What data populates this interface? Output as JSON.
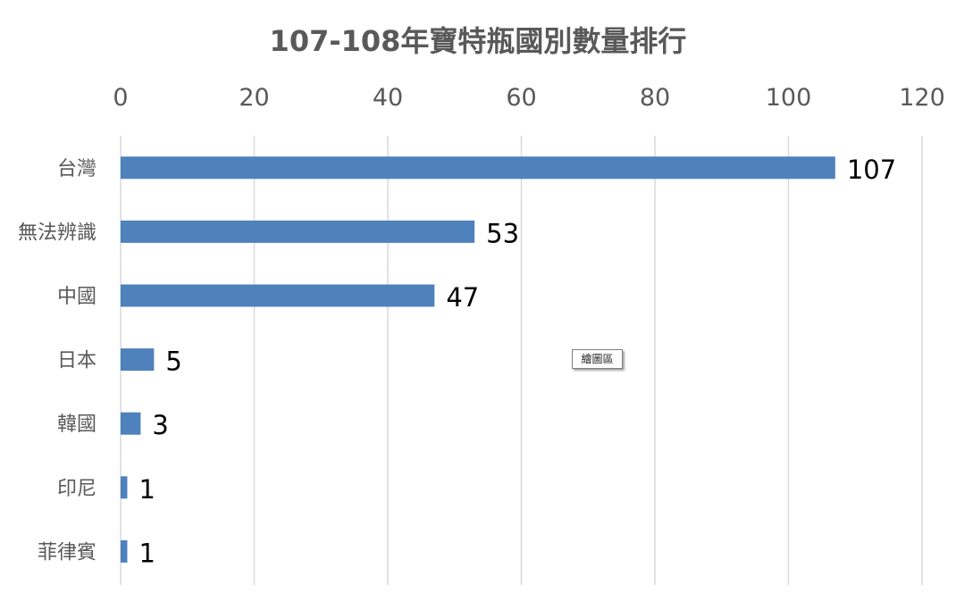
{
  "chart_data": {
    "type": "bar",
    "orientation": "horizontal",
    "title": "107-108年寶特瓶國別數量排行",
    "categories": [
      "台灣",
      "無法辨識",
      "中國",
      "日本",
      "韓國",
      "印尼",
      "菲律賓"
    ],
    "values": [
      107,
      53,
      47,
      5,
      3,
      1,
      1
    ],
    "xlim": [
      0,
      120
    ],
    "xticks": [
      0,
      20,
      40,
      60,
      80,
      100,
      120
    ],
    "grid": true,
    "data_labels": true,
    "bar_color": "#4f81bd"
  },
  "tooltip": "繪圖區"
}
